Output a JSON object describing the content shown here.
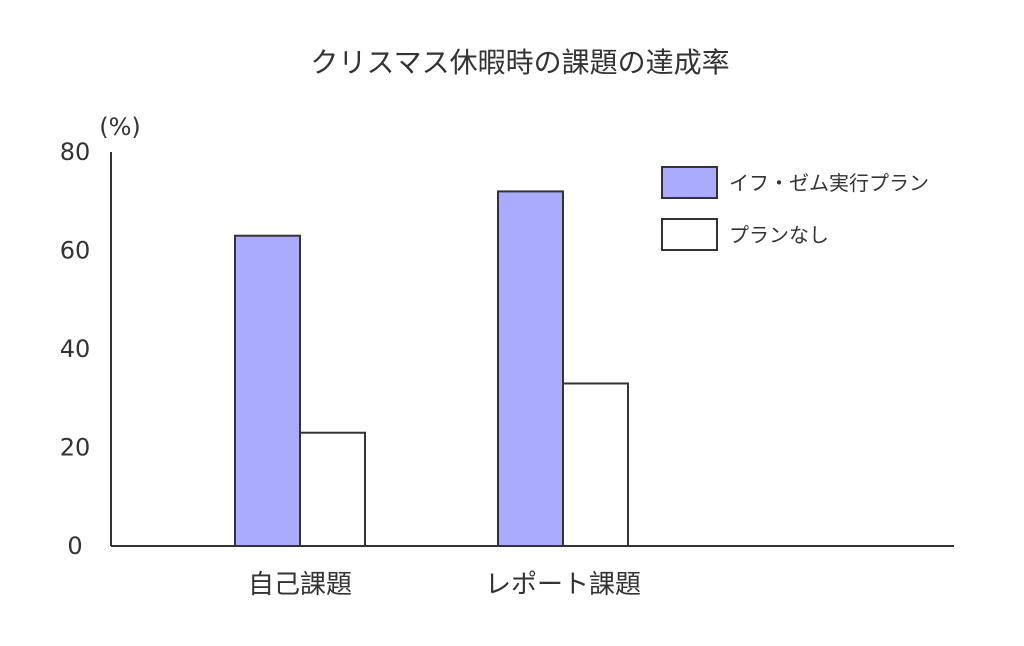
{
  "chart_data": {
    "type": "bar",
    "title": "クリスマス休暇時の課題の達成率",
    "unit_label": "(%)",
    "categories": [
      "自己課題",
      "レポート課題"
    ],
    "series": [
      {
        "name": "イフ・ゼム実行プラン",
        "values": [
          63,
          72
        ],
        "color": "#aaaaff"
      },
      {
        "name": "プランなし",
        "values": [
          23,
          33
        ],
        "color": "#ffffff"
      }
    ],
    "ylim": [
      0,
      80
    ],
    "yticks": [
      0,
      20,
      40,
      60,
      80
    ],
    "grid": false,
    "legend_position": "top-right",
    "bar_stroke_color": "#333333",
    "axis_color": "#333333"
  }
}
